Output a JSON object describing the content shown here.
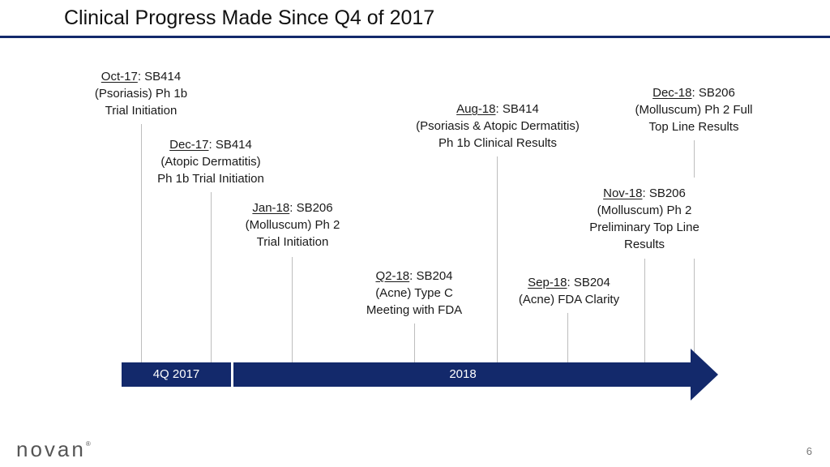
{
  "title": "Clinical Progress Made Since Q4 of 2017",
  "events": {
    "oct17": {
      "date": "Oct-17",
      "rest": ": SB414",
      "line2": "(Psoriasis) Ph 1b",
      "line3": "Trial Initiation"
    },
    "dec17": {
      "date": "Dec-17",
      "rest": ": SB414",
      "line2": "(Atopic Dermatitis)",
      "line3": "Ph 1b Trial Initiation"
    },
    "jan18": {
      "date": "Jan-18",
      "rest": ": SB206",
      "line2": "(Molluscum) Ph 2",
      "line3": "Trial Initiation"
    },
    "q218": {
      "date": "Q2-18",
      "rest": ": SB204",
      "line2": "(Acne) Type C",
      "line3": "Meeting with FDA"
    },
    "aug18": {
      "date": "Aug-18",
      "rest": ": SB414",
      "line2": "(Psoriasis & Atopic Dermatitis)",
      "line3": "Ph 1b Clinical Results"
    },
    "sep18": {
      "date": "Sep-18",
      "rest": ": SB204",
      "line2": "(Acne) FDA Clarity"
    },
    "nov18": {
      "date": "Nov-18",
      "rest": ": SB206",
      "line2": "(Molluscum) Ph 2",
      "line3": "Preliminary Top Line",
      "line4": "Results"
    },
    "dec18": {
      "date": "Dec-18",
      "rest": ": SB206",
      "line2": "(Molluscum) Ph 2 Full",
      "line3": "Top Line Results"
    }
  },
  "timeline": {
    "seg1_label": "4Q 2017",
    "seg2_label": "2018"
  },
  "logo": {
    "text": "novan",
    "reg": "®"
  },
  "page_number": "6",
  "colors": {
    "navy": "#13296b",
    "connector": "#bdbdbd"
  }
}
